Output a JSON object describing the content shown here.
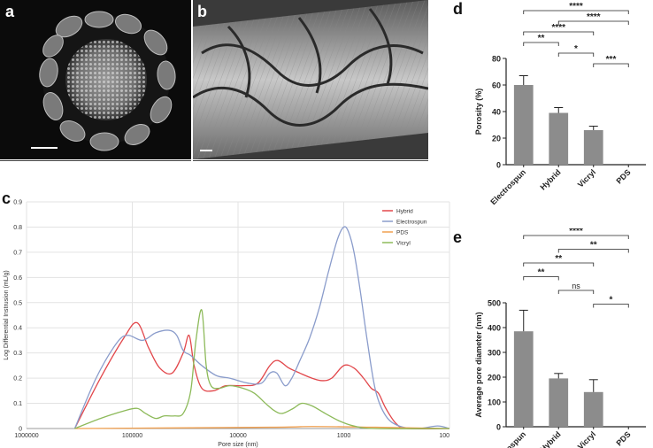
{
  "panels": {
    "a": "a",
    "b": "b",
    "c": "c",
    "d": "d",
    "e": "e"
  },
  "colors": {
    "hybrid": "#e2474b",
    "electrospun": "#8a9ccb",
    "pds": "#f0a050",
    "vicryl": "#8dba5a",
    "bar": "#8c8c8c"
  },
  "chart_data": [
    {
      "id": "c",
      "type": "line",
      "title": "",
      "xlabel": "Pore size (nm)",
      "ylabel": "Log Differential Instrusion (mL/g)",
      "x_scale": "log-reversed",
      "xlim": [
        1000000,
        100
      ],
      "x_ticks": [
        1000000,
        100000,
        10000,
        1000,
        100
      ],
      "x_tick_labels": [
        "1000000",
        "100000",
        "10000",
        "1000",
        "100"
      ],
      "ylim": [
        0,
        0.9
      ],
      "y_ticks": [
        0,
        0.1,
        0.2,
        0.3,
        0.4,
        0.5,
        0.6,
        0.7,
        0.8,
        0.9
      ],
      "y_tick_labels": [
        "0",
        "0.1",
        "0.2",
        "0.3",
        "0.4",
        "0.5",
        "0.6",
        "0.7",
        "0.8",
        "0.9"
      ],
      "grid": true,
      "legend_position": "top-right",
      "series": [
        {
          "name": "Hybrid",
          "key": "hybrid",
          "points": [
            [
              350000,
              0
            ],
            [
              200000,
              0.2
            ],
            [
              120000,
              0.36
            ],
            [
              90000,
              0.42
            ],
            [
              70000,
              0.32
            ],
            [
              55000,
              0.24
            ],
            [
              42000,
              0.22
            ],
            [
              33000,
              0.3
            ],
            [
              29000,
              0.37
            ],
            [
              26000,
              0.25
            ],
            [
              22000,
              0.16
            ],
            [
              17000,
              0.15
            ],
            [
              13000,
              0.17
            ],
            [
              9000,
              0.17
            ],
            [
              6500,
              0.18
            ],
            [
              5000,
              0.25
            ],
            [
              4200,
              0.27
            ],
            [
              3300,
              0.24
            ],
            [
              2600,
              0.22
            ],
            [
              2000,
              0.2
            ],
            [
              1600,
              0.19
            ],
            [
              1300,
              0.2
            ],
            [
              1000,
              0.25
            ],
            [
              800,
              0.24
            ],
            [
              650,
              0.2
            ],
            [
              550,
              0.16
            ],
            [
              470,
              0.14
            ],
            [
              400,
              0.08
            ],
            [
              320,
              0.02
            ],
            [
              250,
              0
            ],
            [
              100,
              0
            ]
          ]
        },
        {
          "name": "Electrospun",
          "key": "electrospun",
          "points": [
            [
              350000,
              0
            ],
            [
              220000,
              0.2
            ],
            [
              140000,
              0.34
            ],
            [
              110000,
              0.37
            ],
            [
              80000,
              0.35
            ],
            [
              60000,
              0.38
            ],
            [
              45000,
              0.39
            ],
            [
              38000,
              0.37
            ],
            [
              33000,
              0.31
            ],
            [
              28000,
              0.29
            ],
            [
              22000,
              0.25
            ],
            [
              16000,
              0.21
            ],
            [
              12000,
              0.2
            ],
            [
              8000,
              0.18
            ],
            [
              6000,
              0.18
            ],
            [
              5000,
              0.22
            ],
            [
              4300,
              0.22
            ],
            [
              3600,
              0.17
            ],
            [
              3100,
              0.2
            ],
            [
              2600,
              0.27
            ],
            [
              2100,
              0.36
            ],
            [
              1700,
              0.48
            ],
            [
              1400,
              0.62
            ],
            [
              1150,
              0.75
            ],
            [
              1000,
              0.8
            ],
            [
              900,
              0.78
            ],
            [
              800,
              0.7
            ],
            [
              700,
              0.55
            ],
            [
              600,
              0.35
            ],
            [
              500,
              0.15
            ],
            [
              400,
              0.05
            ],
            [
              300,
              0.01
            ],
            [
              200,
              0
            ],
            [
              130,
              0.01
            ],
            [
              100,
              0
            ]
          ]
        },
        {
          "name": "PDS",
          "key": "pds",
          "points": [
            [
              350000,
              0
            ],
            [
              5000,
              0.005
            ],
            [
              2000,
              0.008
            ],
            [
              500,
              0.005
            ],
            [
              100,
              0
            ]
          ]
        },
        {
          "name": "Vicryl",
          "key": "vicryl",
          "points": [
            [
              350000,
              0
            ],
            [
              200000,
              0.04
            ],
            [
              120000,
              0.07
            ],
            [
              90000,
              0.08
            ],
            [
              75000,
              0.06
            ],
            [
              60000,
              0.04
            ],
            [
              50000,
              0.05
            ],
            [
              40000,
              0.05
            ],
            [
              33000,
              0.06
            ],
            [
              28000,
              0.15
            ],
            [
              25000,
              0.35
            ],
            [
              22000,
              0.47
            ],
            [
              20000,
              0.25
            ],
            [
              18000,
              0.17
            ],
            [
              15000,
              0.16
            ],
            [
              12000,
              0.17
            ],
            [
              9000,
              0.16
            ],
            [
              7000,
              0.14
            ],
            [
              5500,
              0.1
            ],
            [
              4500,
              0.07
            ],
            [
              3800,
              0.06
            ],
            [
              3000,
              0.08
            ],
            [
              2500,
              0.1
            ],
            [
              2000,
              0.09
            ],
            [
              1500,
              0.06
            ],
            [
              1100,
              0.03
            ],
            [
              800,
              0.01
            ],
            [
              500,
              0
            ],
            [
              100,
              0
            ]
          ]
        }
      ]
    },
    {
      "id": "d",
      "type": "bar",
      "categories": [
        "Electrospun",
        "Hybrid",
        "Vicryl",
        "PDS"
      ],
      "values": [
        60,
        39,
        26,
        0
      ],
      "errors": [
        7,
        4,
        3,
        0
      ],
      "ylabel": "Porosity (%)",
      "xlabel": "",
      "ylim": [
        0,
        80
      ],
      "y_ticks": [
        0,
        20,
        40,
        60,
        80
      ],
      "y_tick_labels": [
        "0",
        "20",
        "40",
        "60",
        "80"
      ],
      "significance": [
        {
          "from": 0,
          "to": 3,
          "label": "****"
        },
        {
          "from": 1,
          "to": 3,
          "label": "****"
        },
        {
          "from": 0,
          "to": 2,
          "label": "****"
        },
        {
          "from": 0,
          "to": 1,
          "label": "**"
        },
        {
          "from": 1,
          "to": 2,
          "label": "*"
        },
        {
          "from": 2,
          "to": 3,
          "label": "***"
        }
      ]
    },
    {
      "id": "e",
      "type": "bar",
      "categories": [
        "Electrospun",
        "Hybrid",
        "Vicryl",
        "PDS"
      ],
      "values": [
        385,
        195,
        140,
        0
      ],
      "errors": [
        85,
        20,
        50,
        0
      ],
      "ylabel": "Average pore diameter (nm)",
      "xlabel": "",
      "ylim": [
        0,
        500
      ],
      "y_ticks": [
        0,
        100,
        200,
        300,
        400,
        500
      ],
      "y_tick_labels": [
        "0",
        "100",
        "200",
        "300",
        "400",
        "500"
      ],
      "significance": [
        {
          "from": 0,
          "to": 3,
          "label": "****"
        },
        {
          "from": 1,
          "to": 3,
          "label": "**"
        },
        {
          "from": 0,
          "to": 2,
          "label": "**"
        },
        {
          "from": 0,
          "to": 1,
          "label": "**"
        },
        {
          "from": 1,
          "to": 2,
          "label": "ns"
        },
        {
          "from": 2,
          "to": 3,
          "label": "*"
        }
      ]
    }
  ]
}
